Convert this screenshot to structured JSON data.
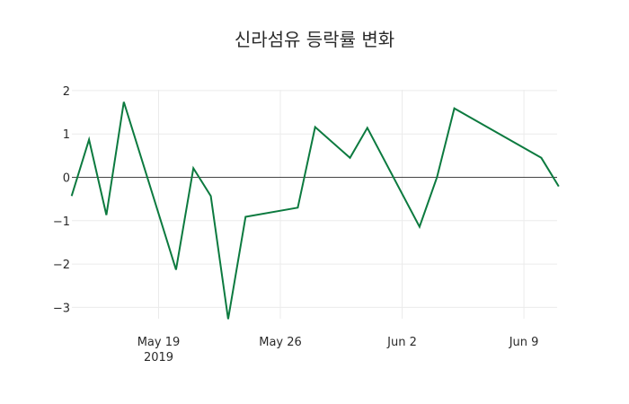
{
  "chart_data": {
    "type": "line",
    "title": "신라섬유 등락률 변화",
    "xlabel": "",
    "ylabel": "",
    "ylim": [
      -3.5,
      2.0
    ],
    "grid": true,
    "legend": null,
    "x_tick_labels": [
      "May 19\n2019",
      "May 26",
      "Jun 2",
      "Jun 9"
    ],
    "y_tick_labels": [
      "2",
      "1",
      "0",
      "−1",
      "−2",
      "−3"
    ],
    "line_color": "#0c7a3f",
    "series": [
      {
        "name": "등락률",
        "x": [
          "2019-05-14",
          "2019-05-15",
          "2019-05-16",
          "2019-05-17",
          "2019-05-20",
          "2019-05-21",
          "2019-05-22",
          "2019-05-23",
          "2019-05-24",
          "2019-05-27",
          "2019-05-28",
          "2019-05-30",
          "2019-05-31",
          "2019-06-03",
          "2019-06-04",
          "2019-06-05",
          "2019-06-10",
          "2019-06-11"
        ],
        "values": [
          -0.43,
          0.87,
          -0.87,
          1.74,
          -2.13,
          0.21,
          -0.43,
          -3.27,
          -0.91,
          -0.7,
          1.16,
          0.45,
          1.14,
          -1.14,
          0.0,
          1.59,
          0.45,
          -0.21
        ]
      }
    ]
  }
}
